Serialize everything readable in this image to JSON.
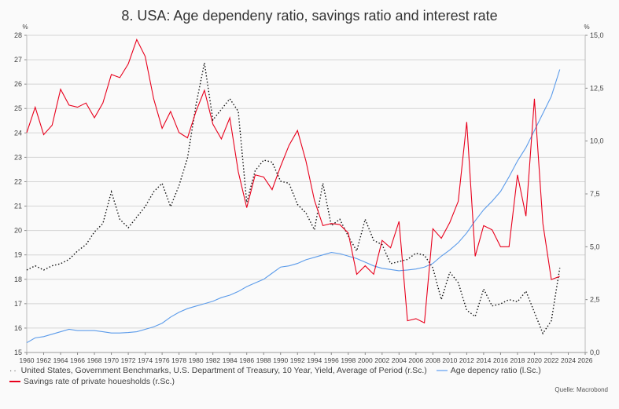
{
  "chart_data": {
    "type": "line",
    "title": "8. USA: Age dependeny ratio, savings ratio and interest rate",
    "left_unit": "%",
    "right_unit": "%",
    "xlim": [
      1960,
      2026
    ],
    "x_ticks": [
      1960,
      1962,
      1964,
      1966,
      1968,
      1970,
      1972,
      1974,
      1976,
      1978,
      1980,
      1982,
      1984,
      1986,
      1988,
      1990,
      1992,
      1994,
      1996,
      1998,
      2000,
      2002,
      2004,
      2006,
      2008,
      2010,
      2012,
      2014,
      2016,
      2018,
      2020,
      2022,
      2024,
      2026
    ],
    "left_ylim": [
      15,
      28
    ],
    "left_ticks": [
      "15",
      "16",
      "17",
      "18",
      "19",
      "20",
      "21",
      "22",
      "23",
      "24",
      "25",
      "26",
      "27",
      "28"
    ],
    "right_ylim": [
      0,
      15
    ],
    "right_ticks": [
      "0,0",
      "2,5",
      "5,0",
      "7,5",
      "10,0",
      "12,5",
      "15,0"
    ],
    "grid": true,
    "legend_placement": "bottom",
    "series": [
      {
        "name": "United States, Government Benchmarks, U.S. Department of Treasury, 10 Year, Yield, Average of Period (r.Sc.)",
        "axis": "right",
        "style": "dotted",
        "color": "#111111",
        "x": [
          1960,
          1961,
          1962,
          1963,
          1964,
          1965,
          1966,
          1967,
          1968,
          1969,
          1970,
          1971,
          1972,
          1973,
          1974,
          1975,
          1976,
          1977,
          1978,
          1979,
          1980,
          1981,
          1982,
          1983,
          1984,
          1985,
          1986,
          1987,
          1988,
          1989,
          1990,
          1991,
          1992,
          1993,
          1994,
          1995,
          1996,
          1997,
          1998,
          1999,
          2000,
          2001,
          2002,
          2003,
          2004,
          2005,
          2006,
          2007,
          2008,
          2009,
          2010,
          2011,
          2012,
          2013,
          2014,
          2015,
          2016,
          2017,
          2018,
          2019,
          2020,
          2021,
          2022,
          2023
        ],
        "values": [
          3.9,
          4.1,
          3.9,
          4.1,
          4.2,
          4.4,
          4.8,
          5.1,
          5.7,
          6.1,
          7.6,
          6.3,
          5.9,
          6.4,
          6.9,
          7.6,
          8.0,
          6.9,
          7.9,
          9.2,
          11.7,
          13.7,
          11.0,
          11.5,
          12.0,
          11.4,
          7.1,
          8.6,
          9.1,
          9.0,
          8.1,
          8.0,
          7.0,
          6.6,
          5.8,
          8.0,
          6.0,
          6.3,
          5.5,
          4.8,
          6.3,
          5.3,
          5.1,
          4.2,
          4.3,
          4.4,
          4.7,
          4.6,
          4.0,
          2.5,
          3.8,
          3.3,
          2.0,
          1.7,
          3.0,
          2.2,
          2.3,
          2.5,
          2.4,
          2.9,
          1.9,
          0.9,
          1.5,
          4.0
        ]
      },
      {
        "name": "Age depency ratio (l.Sc.)",
        "axis": "left",
        "style": "solid",
        "color": "#5b9bea",
        "x": [
          1960,
          1961,
          1962,
          1963,
          1964,
          1965,
          1966,
          1967,
          1968,
          1969,
          1970,
          1971,
          1972,
          1973,
          1974,
          1975,
          1976,
          1977,
          1978,
          1979,
          1980,
          1981,
          1982,
          1983,
          1984,
          1985,
          1986,
          1987,
          1988,
          1989,
          1990,
          1991,
          1992,
          1993,
          1994,
          1995,
          1996,
          1997,
          1998,
          1999,
          2000,
          2001,
          2002,
          2003,
          2004,
          2005,
          2006,
          2007,
          2008,
          2009,
          2010,
          2011,
          2012,
          2013,
          2014,
          2015,
          2016,
          2017,
          2018,
          2019,
          2020,
          2021,
          2022,
          2023
        ],
        "values": [
          15.4,
          15.6,
          15.65,
          15.75,
          15.85,
          15.95,
          15.9,
          15.9,
          15.9,
          15.85,
          15.8,
          15.8,
          15.82,
          15.85,
          15.95,
          16.05,
          16.2,
          16.45,
          16.65,
          16.8,
          16.9,
          17.0,
          17.1,
          17.25,
          17.35,
          17.5,
          17.7,
          17.85,
          18.0,
          18.25,
          18.5,
          18.55,
          18.65,
          18.8,
          18.9,
          19.0,
          19.1,
          19.05,
          18.95,
          18.85,
          18.7,
          18.55,
          18.45,
          18.4,
          18.35,
          18.38,
          18.42,
          18.5,
          18.65,
          18.95,
          19.2,
          19.5,
          19.9,
          20.4,
          20.85,
          21.2,
          21.6,
          22.2,
          22.85,
          23.4,
          24.1,
          24.8,
          25.5,
          26.6
        ]
      },
      {
        "name": "Savings rate of private houesholds (r.Sc.)",
        "axis": "right",
        "style": "solid",
        "color": "#e8001c",
        "x": [
          1960,
          1961,
          1962,
          1963,
          1964,
          1965,
          1966,
          1967,
          1968,
          1969,
          1970,
          1971,
          1972,
          1973,
          1974,
          1975,
          1976,
          1977,
          1978,
          1979,
          1980,
          1981,
          1982,
          1983,
          1984,
          1985,
          1986,
          1987,
          1988,
          1989,
          1990,
          1991,
          1992,
          1993,
          1994,
          1995,
          1996,
          1997,
          1998,
          1999,
          2000,
          2001,
          2002,
          2003,
          2004,
          2005,
          2006,
          2007,
          2008,
          2009,
          2010,
          2011,
          2012,
          2013,
          2014,
          2015,
          2016,
          2017,
          2018,
          2019,
          2020,
          2021,
          2022,
          2023
        ],
        "values": [
          10.4,
          11.6,
          10.3,
          10.75,
          12.45,
          11.7,
          11.6,
          11.8,
          11.1,
          11.8,
          13.15,
          13.0,
          13.65,
          14.8,
          14.0,
          12.0,
          10.6,
          11.4,
          10.4,
          10.15,
          11.4,
          12.4,
          10.8,
          10.1,
          11.1,
          8.55,
          6.85,
          8.4,
          8.3,
          7.7,
          8.8,
          9.8,
          10.5,
          9.05,
          7.2,
          6.0,
          6.1,
          6.05,
          5.65,
          3.7,
          4.1,
          3.7,
          5.3,
          4.95,
          6.2,
          1.5,
          1.6,
          1.4,
          5.85,
          5.4,
          6.15,
          7.15,
          10.9,
          4.55,
          6.0,
          5.8,
          5.0,
          5.0,
          8.4,
          6.45,
          12.0,
          6.1,
          3.45,
          3.6
        ]
      }
    ],
    "source": "Quelle: Macrobond"
  }
}
